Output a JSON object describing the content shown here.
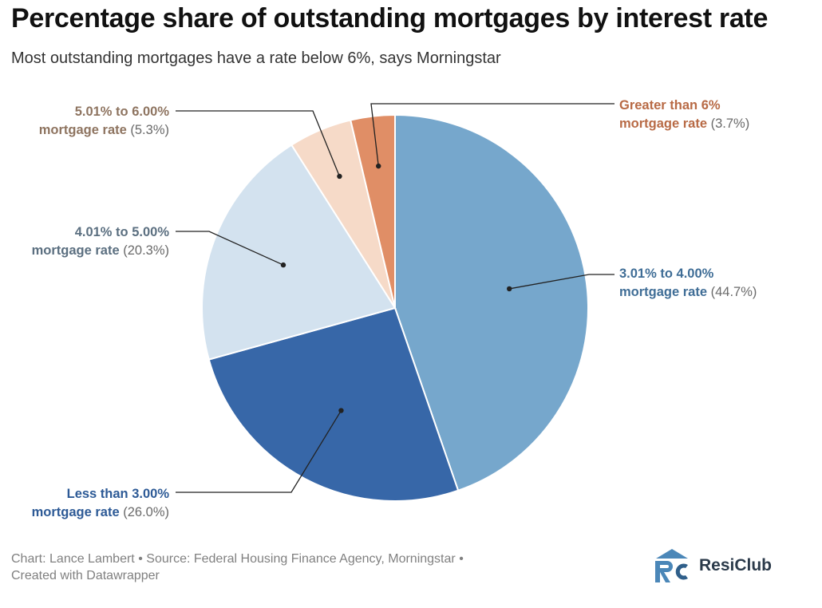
{
  "title": "Percentage share of outstanding mortgages by interest rate",
  "subtitle": "Most outstanding mortgages have a rate below 6%, says Morningstar",
  "footer": {
    "credit": "Chart: Lance Lambert",
    "source": "Source: Federal Housing Finance Agency, Morningstar",
    "created": "Created with Datawrapper",
    "separator": "•"
  },
  "brand": {
    "name": "ResiClub",
    "logo_icon": "resiclub-logo-icon"
  },
  "chart_data": {
    "type": "pie",
    "title": "Percentage share of outstanding mortgages by interest rate",
    "subtitle": "Most outstanding mortgages have a rate below 6%, says Morningstar",
    "unit": "%",
    "slices": [
      {
        "line1": "3.01% to 4.00%",
        "line2": "mortgage rate",
        "value_text": "(44.7%)",
        "value": 44.7,
        "color": "#76a7cc",
        "text_color": "#3f6d96"
      },
      {
        "line1": "Less than 3.00%",
        "line2": "mortgage rate",
        "value_text": "(26.0%)",
        "value": 26.0,
        "color": "#3767a8",
        "text_color": "#2d5a96"
      },
      {
        "line1": "4.01% to 5.00%",
        "line2": "mortgage rate",
        "value_text": "(20.3%)",
        "value": 20.3,
        "color": "#d3e2ef",
        "text_color": "#5b6f80"
      },
      {
        "line1": "5.01% to 6.00%",
        "line2": "mortgage rate",
        "value_text": "(5.3%)",
        "value": 5.3,
        "color": "#f6dac8",
        "text_color": "#8e7460"
      },
      {
        "line1": "Greater than 6%",
        "line2": "mortgage rate",
        "value_text": "(3.7%)",
        "value": 3.7,
        "color": "#e08e66",
        "text_color": "#b86a45"
      }
    ],
    "order": "clockwise from 12 o'clock",
    "legend": "none (direct labels)"
  }
}
